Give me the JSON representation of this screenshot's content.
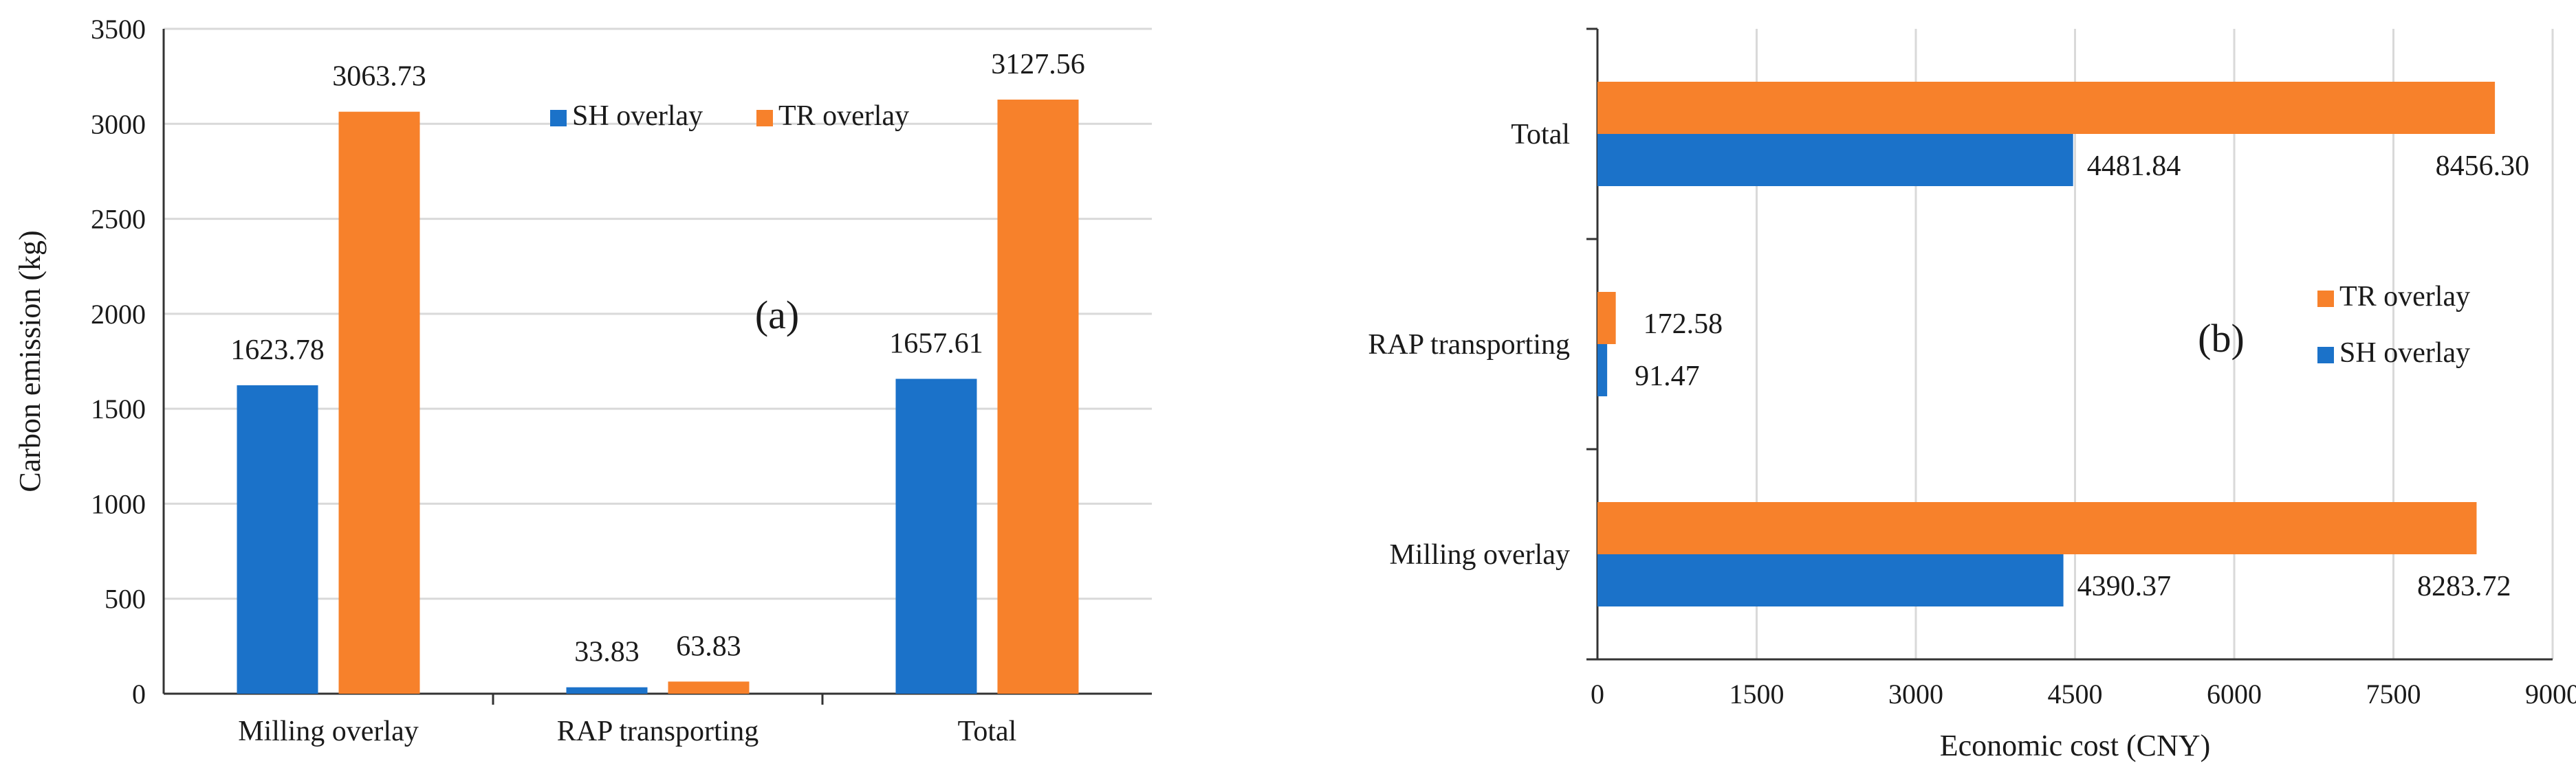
{
  "chart_data": [
    {
      "type": "bar",
      "panel_label": "(a)",
      "categories": [
        "Milling overlay",
        "RAP transporting",
        "Total"
      ],
      "series": [
        {
          "name": "SH overlay",
          "values": [
            1623.78,
            33.83,
            1657.61
          ],
          "labels": [
            "1623.78",
            "33.83",
            "1657.61"
          ]
        },
        {
          "name": "TR overlay",
          "values": [
            3063.73,
            63.83,
            3127.56
          ],
          "labels": [
            "3063.73",
            "63.83",
            "3127.56"
          ]
        }
      ],
      "xlabel": "",
      "ylabel": "Carbon emission (kg)",
      "ylim": [
        0,
        3500
      ],
      "yticks": [
        "0",
        "500",
        "1000",
        "1500",
        "2000",
        "2500",
        "3000",
        "3500"
      ],
      "grid": "horizontal",
      "legend": "top-center"
    },
    {
      "type": "bar",
      "orientation": "horizontal",
      "panel_label": "(b)",
      "categories": [
        "Milling overlay",
        "RAP transporting",
        "Total"
      ],
      "series": [
        {
          "name": "SH overlay",
          "values": [
            4390.37,
            91.47,
            4481.84
          ],
          "labels": [
            "4390.37",
            "91.47",
            "4481.84"
          ]
        },
        {
          "name": "TR overlay",
          "values": [
            8283.72,
            172.58,
            8456.3
          ],
          "labels": [
            "8283.72",
            "172.58",
            "8456.30"
          ]
        }
      ],
      "xlabel": "Economic cost (CNY)",
      "ylabel": "",
      "xlim": [
        0,
        9000
      ],
      "xticks": [
        "0",
        "1500",
        "3000",
        "4500",
        "6000",
        "7500",
        "9000"
      ],
      "grid": "vertical",
      "legend": "right-center",
      "legend_order": [
        "TR overlay",
        "SH overlay"
      ]
    }
  ],
  "colors": {
    "sh": "#1b72c9",
    "tr": "#f7812b",
    "grid": "#d9d9d9",
    "axis": "#333333"
  }
}
